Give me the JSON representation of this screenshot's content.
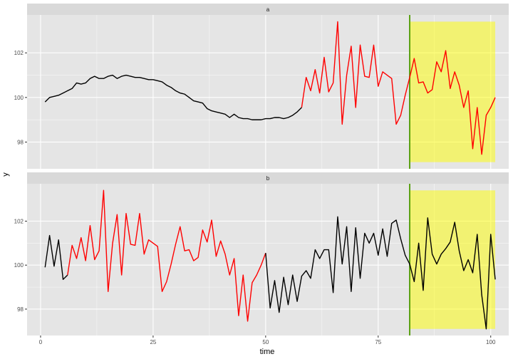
{
  "chart_data": {
    "type": "line",
    "xlabel": "time",
    "ylabel": "y",
    "xlim": [
      -3,
      104
    ],
    "ylim": [
      96.8,
      103.7
    ],
    "xticks": [
      0,
      25,
      50,
      75,
      100
    ],
    "yticks": [
      98,
      100,
      102
    ],
    "grid": true,
    "colors": {
      "panel_bg": "#e5e5e5",
      "strip_bg": "#d9d9d9",
      "grid": "#ffffff",
      "series_a_line": "#000000",
      "series_b_line": "#ff0000",
      "vline": "#4d9a00",
      "highlight": "#ffff00"
    },
    "highlight": {
      "x0": 82,
      "x1": 101,
      "y0": 97.1,
      "y1": 103.4,
      "opacity": 0.5
    },
    "vline_x": 82,
    "facets": [
      {
        "label": "a",
        "x": [
          1,
          2,
          3,
          4,
          5,
          6,
          7,
          8,
          9,
          10,
          11,
          12,
          13,
          14,
          15,
          16,
          17,
          18,
          19,
          20,
          21,
          22,
          23,
          24,
          25,
          26,
          27,
          28,
          29,
          30,
          31,
          32,
          33,
          34,
          35,
          36,
          37,
          38,
          39,
          40,
          41,
          42,
          43,
          44,
          45,
          46,
          47,
          48,
          49,
          50,
          51,
          52,
          53,
          54,
          55,
          56,
          57,
          58,
          59,
          60,
          61,
          62,
          63,
          64,
          65,
          66,
          67,
          68,
          69,
          70,
          71,
          72,
          73,
          74,
          75,
          76,
          77,
          78,
          79,
          80,
          81,
          82,
          83,
          84,
          85,
          86,
          87,
          88,
          89,
          90,
          91,
          92,
          93,
          94,
          95,
          96,
          97,
          98,
          99,
          100,
          101
        ],
        "y": [
          99.8,
          100.0,
          100.05,
          100.1,
          100.2,
          100.3,
          100.4,
          100.65,
          100.6,
          100.65,
          100.85,
          100.95,
          100.85,
          100.85,
          100.95,
          101.0,
          100.85,
          100.95,
          101.0,
          100.95,
          100.9,
          100.9,
          100.85,
          100.8,
          100.8,
          100.75,
          100.7,
          100.55,
          100.45,
          100.3,
          100.2,
          100.15,
          100.0,
          99.85,
          99.8,
          99.75,
          99.5,
          99.4,
          99.35,
          99.3,
          99.25,
          99.1,
          99.25,
          99.1,
          99.05,
          99.05,
          99.0,
          99.0,
          99.0,
          99.05,
          99.05,
          99.1,
          99.1,
          99.05,
          99.1,
          99.2,
          99.35,
          99.55,
          100.9,
          100.3,
          101.25,
          100.2,
          101.8,
          100.25,
          100.65,
          103.4,
          98.8,
          101.0,
          102.3,
          99.55,
          102.35,
          100.95,
          100.9,
          102.35,
          100.5,
          101.15,
          101.0,
          100.85,
          98.8,
          99.2,
          100.1,
          100.9,
          101.75,
          100.65,
          100.7,
          100.2,
          100.35,
          101.6,
          101.15,
          102.1,
          100.4,
          101.15,
          100.55,
          99.55,
          100.3,
          97.7,
          99.55,
          97.45,
          99.2,
          99.55,
          100.0
        ],
        "segments": [
          {
            "from": 1,
            "to": 58,
            "series": "black"
          },
          {
            "from": 58,
            "to": 101,
            "series": "red"
          }
        ]
      },
      {
        "label": "b",
        "x": [
          1,
          2,
          3,
          4,
          5,
          6,
          7,
          8,
          9,
          10,
          11,
          12,
          13,
          14,
          15,
          16,
          17,
          18,
          19,
          20,
          21,
          22,
          23,
          24,
          25,
          26,
          27,
          28,
          29,
          30,
          31,
          32,
          33,
          34,
          35,
          36,
          37,
          38,
          39,
          40,
          41,
          42,
          43,
          44,
          45,
          46,
          47,
          48,
          49,
          50,
          51,
          52,
          53,
          54,
          55,
          56,
          57,
          58,
          59,
          60,
          61,
          62,
          63,
          64,
          65,
          66,
          67,
          68,
          69,
          70,
          71,
          72,
          73,
          74,
          75,
          76,
          77,
          78,
          79,
          80,
          81,
          82,
          83,
          84,
          85,
          86,
          87,
          88,
          89,
          90,
          91,
          92,
          93,
          94,
          95,
          96,
          97,
          98,
          99,
          100,
          101
        ],
        "y": [
          99.9,
          101.35,
          99.95,
          101.15,
          99.35,
          99.55,
          100.9,
          100.3,
          101.25,
          100.2,
          101.8,
          100.25,
          100.65,
          103.4,
          98.8,
          101.0,
          102.3,
          99.55,
          102.35,
          100.95,
          100.9,
          102.35,
          100.5,
          101.15,
          101.0,
          100.85,
          98.8,
          99.25,
          100.05,
          100.95,
          101.75,
          100.65,
          100.7,
          100.2,
          100.35,
          101.6,
          101.05,
          102.05,
          100.4,
          101.1,
          100.5,
          99.55,
          100.3,
          97.7,
          99.55,
          97.45,
          99.2,
          99.55,
          100.0,
          100.55,
          98.05,
          99.3,
          97.85,
          99.45,
          98.2,
          99.55,
          98.35,
          99.5,
          99.75,
          99.4,
          100.7,
          100.3,
          100.7,
          100.7,
          98.75,
          102.2,
          100.05,
          101.75,
          98.8,
          101.7,
          99.4,
          101.45,
          101.0,
          101.45,
          100.45,
          101.65,
          100.4,
          101.9,
          102.05,
          101.2,
          100.45,
          100.05,
          99.25,
          101.0,
          98.85,
          102.15,
          100.5,
          100.05,
          100.5,
          100.75,
          101.05,
          101.95,
          100.65,
          99.75,
          100.25,
          99.65,
          101.4,
          98.65,
          97.1,
          101.4,
          99.35
        ],
        "segments": [
          {
            "from": 1,
            "to": 6,
            "series": "black"
          },
          {
            "from": 6,
            "to": 50,
            "series": "red"
          },
          {
            "from": 50,
            "to": 101,
            "series": "black"
          }
        ]
      }
    ]
  }
}
